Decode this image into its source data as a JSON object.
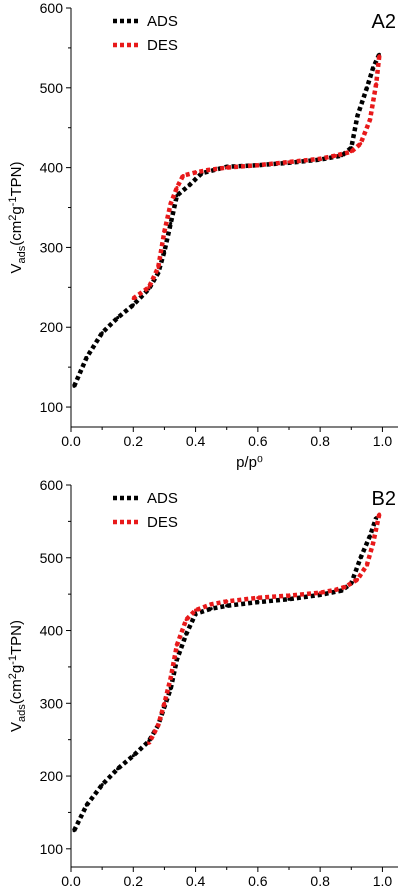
{
  "chart_data": [
    {
      "type": "scatter",
      "panel_label": "A2",
      "xlabel": "p/p⁰",
      "ylabel": "V_ads(cm²g⁻¹TPN)",
      "xlim": [
        0.0,
        1.05
      ],
      "ylim": [
        75,
        600
      ],
      "xticks": [
        0.0,
        0.2,
        0.4,
        0.6,
        0.8,
        1.0
      ],
      "xtick_labels": [
        "0.0",
        "0.2",
        "0.4",
        "0.6",
        "0.8",
        "1.0"
      ],
      "yticks": [
        100,
        200,
        300,
        400,
        500,
        600
      ],
      "ytick_labels": [
        "100",
        "200",
        "300",
        "400",
        "500",
        "600"
      ],
      "grid": false,
      "legend_position": "top-left",
      "series": [
        {
          "name": "ADS",
          "color": "#000000",
          "x": [
            0.01,
            0.05,
            0.1,
            0.15,
            0.2,
            0.25,
            0.28,
            0.3,
            0.32,
            0.34,
            0.38,
            0.42,
            0.5,
            0.6,
            0.7,
            0.8,
            0.87,
            0.9,
            0.92,
            0.95,
            0.97,
            0.99
          ],
          "y": [
            126,
            162,
            193,
            212,
            228,
            248,
            268,
            295,
            330,
            365,
            378,
            393,
            401,
            403,
            406,
            410,
            415,
            425,
            465,
            500,
            525,
            542
          ]
        },
        {
          "name": "DES",
          "color": "#e8191a",
          "x": [
            0.99,
            0.98,
            0.96,
            0.93,
            0.9,
            0.85,
            0.8,
            0.7,
            0.6,
            0.5,
            0.44,
            0.4,
            0.36,
            0.34,
            0.32,
            0.3,
            0.28,
            0.25,
            0.2
          ],
          "y": [
            540,
            505,
            460,
            430,
            420,
            415,
            411,
            407,
            403,
            400,
            397,
            394,
            390,
            375,
            355,
            320,
            275,
            250,
            236
          ]
        }
      ]
    },
    {
      "type": "scatter",
      "panel_label": "B2",
      "xlabel": "p/p⁰",
      "ylabel": "V_ads(cm²g⁻¹TPN)",
      "xlim": [
        0.0,
        1.05
      ],
      "ylim": [
        75,
        600
      ],
      "xticks": [
        0.0,
        0.2,
        0.4,
        0.6,
        0.8,
        1.0
      ],
      "xtick_labels": [
        "0.0",
        "0.2",
        "0.4",
        "0.6",
        "0.8",
        "1.0"
      ],
      "yticks": [
        100,
        200,
        300,
        400,
        500,
        600
      ],
      "ytick_labels": [
        "100",
        "200",
        "300",
        "400",
        "500",
        "600"
      ],
      "grid": false,
      "legend_position": "top-left",
      "series": [
        {
          "name": "ADS",
          "color": "#000000",
          "x": [
            0.01,
            0.05,
            0.1,
            0.15,
            0.2,
            0.25,
            0.28,
            0.3,
            0.32,
            0.34,
            0.37,
            0.4,
            0.45,
            0.5,
            0.6,
            0.7,
            0.8,
            0.87,
            0.9,
            0.93,
            0.96,
            0.98
          ],
          "y": [
            125,
            160,
            188,
            210,
            228,
            248,
            270,
            295,
            320,
            360,
            395,
            423,
            430,
            434,
            439,
            443,
            449,
            455,
            465,
            500,
            530,
            555
          ]
        },
        {
          "name": "DES",
          "color": "#e8191a",
          "x": [
            0.99,
            0.97,
            0.95,
            0.92,
            0.88,
            0.85,
            0.8,
            0.7,
            0.6,
            0.5,
            0.45,
            0.4,
            0.37,
            0.34,
            0.32,
            0.3,
            0.28,
            0.25
          ],
          "y": [
            560,
            520,
            490,
            470,
            460,
            456,
            452,
            448,
            445,
            440,
            436,
            428,
            415,
            380,
            335,
            300,
            270,
            245
          ]
        }
      ]
    }
  ]
}
